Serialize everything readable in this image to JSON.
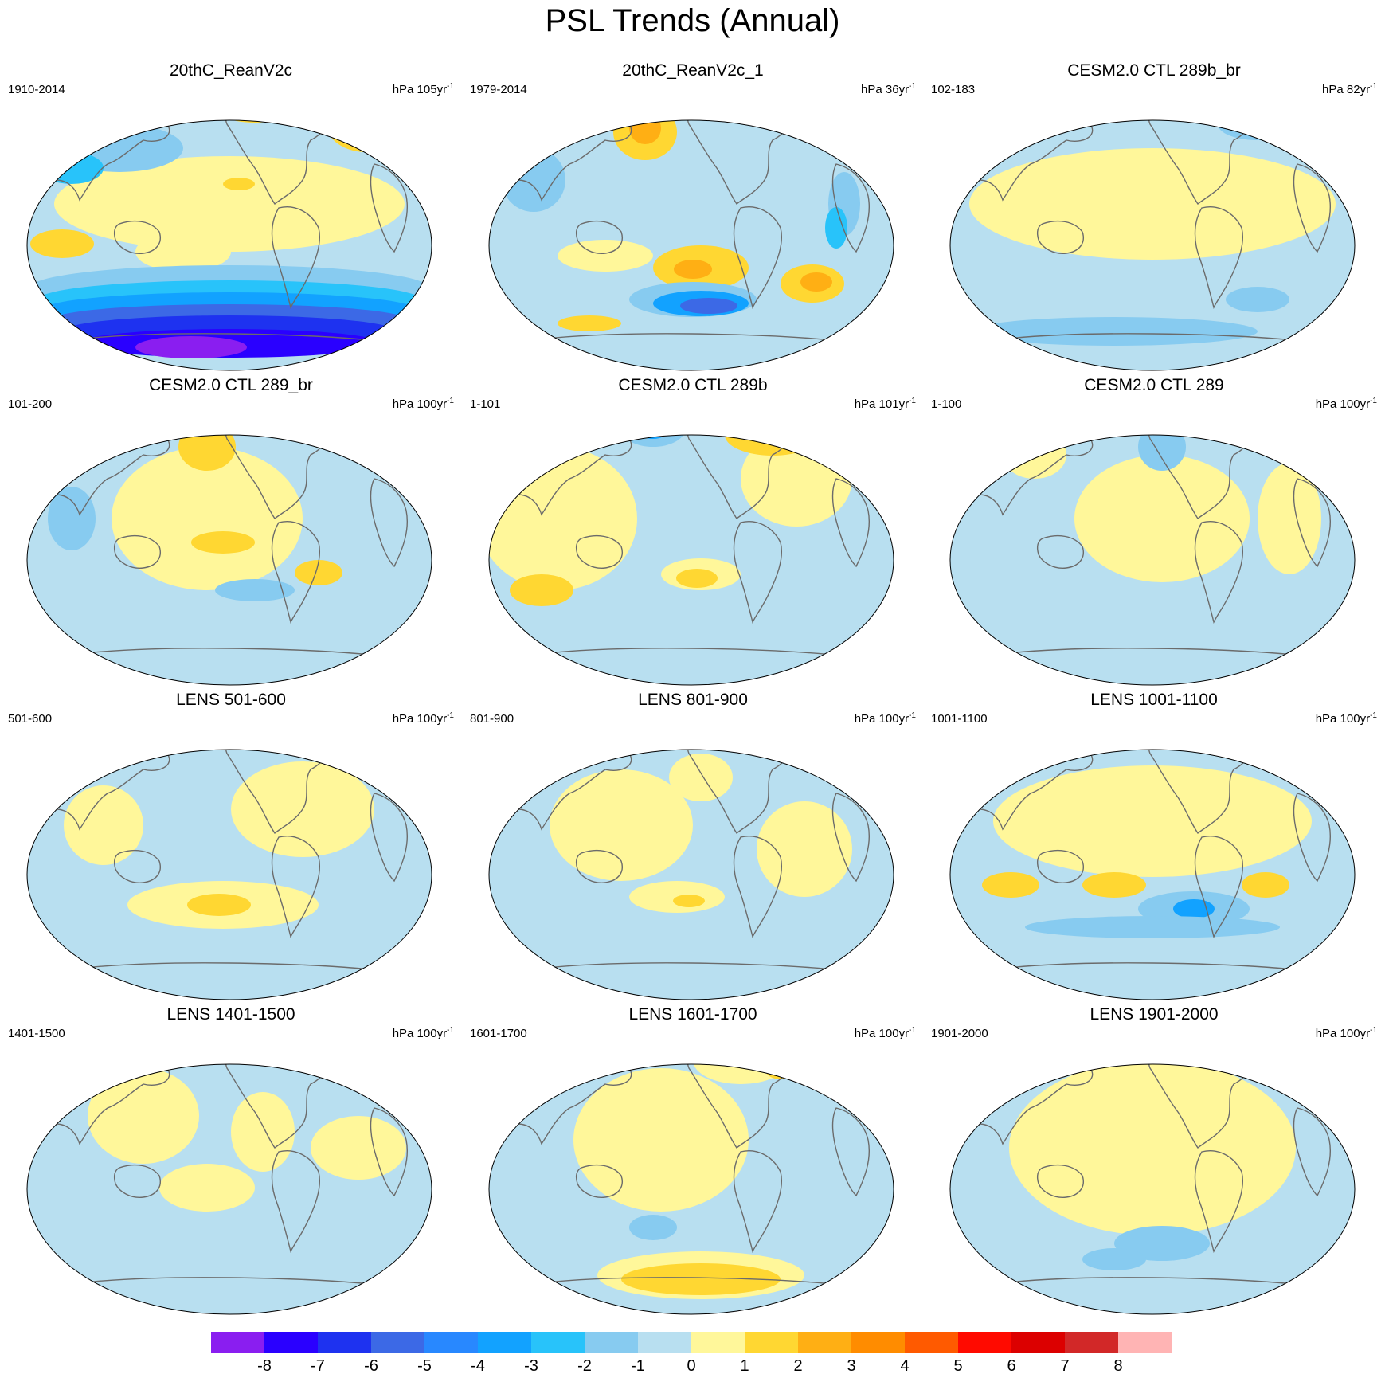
{
  "figure": {
    "title": "PSL Trends (Annual)"
  },
  "colors": {
    "ocean_blue_light": "#b8dff0",
    "yellow_light": "#fff79a",
    "coast": "#6b6b6b"
  },
  "panels": [
    {
      "title": "20thC_ReanV2c",
      "period": "1910-2014",
      "units": "hPa 105yr",
      "units_sup": "-1",
      "theme": "rean"
    },
    {
      "title": "20thC_ReanV2c_1",
      "period": "1979-2014",
      "units": "hPa 36yr",
      "units_sup": "-1",
      "theme": "rean1"
    },
    {
      "title": "CESM2.0 CTL 289b_br",
      "period": "102-183",
      "units": "hPa 82yr",
      "units_sup": "-1",
      "theme": "ctl_b_br"
    },
    {
      "title": "CESM2.0 CTL 289_br",
      "period": "101-200",
      "units": "hPa 100yr",
      "units_sup": "-1",
      "theme": "ctl_br"
    },
    {
      "title": "CESM2.0 CTL 289b",
      "period": "1-101",
      "units": "hPa 101yr",
      "units_sup": "-1",
      "theme": "ctl_b"
    },
    {
      "title": "CESM2.0 CTL 289",
      "period": "1-100",
      "units": "hPa 100yr",
      "units_sup": "-1",
      "theme": "ctl"
    },
    {
      "title": "LENS 501-600",
      "period": "501-600",
      "units": "hPa 100yr",
      "units_sup": "-1",
      "theme": "l501"
    },
    {
      "title": "LENS 801-900",
      "period": "801-900",
      "units": "hPa 100yr",
      "units_sup": "-1",
      "theme": "l801"
    },
    {
      "title": "LENS 1001-1100",
      "period": "1001-1100",
      "units": "hPa 100yr",
      "units_sup": "-1",
      "theme": "l1001"
    },
    {
      "title": "LENS 1401-1500",
      "period": "1401-1500",
      "units": "hPa 100yr",
      "units_sup": "-1",
      "theme": "l1401"
    },
    {
      "title": "LENS 1601-1700",
      "period": "1601-1700",
      "units": "hPa 100yr",
      "units_sup": "-1",
      "theme": "l1601"
    },
    {
      "title": "LENS 1901-2000",
      "period": "1901-2000",
      "units": "hPa 100yr",
      "units_sup": "-1",
      "theme": "l1901"
    }
  ],
  "colorbar": {
    "labels": [
      "-8",
      "-7",
      "-6",
      "-5",
      "-4",
      "-3",
      "-2",
      "-1",
      "0",
      "1",
      "2",
      "3",
      "4",
      "5",
      "6",
      "7",
      "8"
    ],
    "colors": [
      "#8a1ef0",
      "#2a00ff",
      "#1e32f0",
      "#3c69e6",
      "#2888ff",
      "#12a2ff",
      "#28c3fa",
      "#87cbf0",
      "#b8dff0",
      "#fff79a",
      "#ffd732",
      "#ffaf14",
      "#ff8c00",
      "#ff5a00",
      "#ff0a00",
      "#dc0000",
      "#d22828",
      "#ffb4b4"
    ]
  }
}
